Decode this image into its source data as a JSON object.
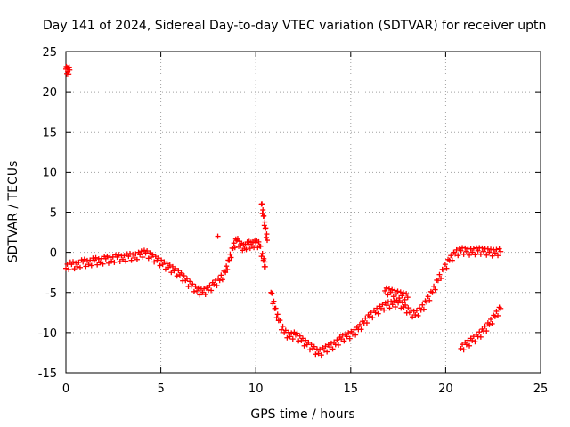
{
  "chart_data": {
    "type": "scatter",
    "title": "Day 141 of 2024, Sidereal Day-to-day VTEC variation (SDTVAR) for receiver uptn",
    "xlabel": "GPS time / hours",
    "ylabel": "SDTVAR / TECUs",
    "xlim": [
      0,
      25
    ],
    "ylim": [
      -15,
      25
    ],
    "x_ticks": [
      "0",
      "5",
      "10",
      "15",
      "20",
      "25"
    ],
    "y_ticks": [
      "25",
      "20",
      "15",
      "10",
      "5",
      "0",
      "-5",
      "-10",
      "-15"
    ],
    "grid": true,
    "marker": "plus",
    "color": "#ff0000",
    "series": [
      {
        "name": "SDTVAR",
        "points": [
          [
            0.0,
            22.8
          ],
          [
            0.1,
            22.5
          ],
          [
            0.2,
            22.7
          ],
          [
            0.0,
            -2.0
          ],
          [
            0.3,
            -1.5
          ],
          [
            0.6,
            -1.8
          ],
          [
            0.9,
            -1.2
          ],
          [
            1.2,
            -1.5
          ],
          [
            1.5,
            -1.0
          ],
          [
            1.8,
            -1.3
          ],
          [
            2.1,
            -0.8
          ],
          [
            2.4,
            -1.1
          ],
          [
            2.7,
            -0.6
          ],
          [
            3.0,
            -0.9
          ],
          [
            3.3,
            -0.5
          ],
          [
            3.6,
            -0.7
          ],
          [
            3.9,
            -0.3
          ],
          [
            4.2,
            -0.1
          ],
          [
            4.5,
            -0.6
          ],
          [
            4.8,
            -1.0
          ],
          [
            5.1,
            -1.5
          ],
          [
            5.4,
            -1.9
          ],
          [
            5.7,
            -2.3
          ],
          [
            6.0,
            -2.8
          ],
          [
            6.3,
            -3.5
          ],
          [
            6.6,
            -4.2
          ],
          [
            6.9,
            -4.8
          ],
          [
            7.2,
            -5.0
          ],
          [
            7.5,
            -4.7
          ],
          [
            7.8,
            -4.0
          ],
          [
            8.1,
            -3.5
          ],
          [
            8.4,
            -2.5
          ],
          [
            8.6,
            -1.0
          ],
          [
            8.8,
            0.5
          ],
          [
            9.0,
            1.5
          ],
          [
            9.2,
            0.8
          ],
          [
            9.4,
            0.5
          ],
          [
            9.6,
            1.0
          ],
          [
            9.8,
            0.8
          ],
          [
            10.0,
            1.2
          ],
          [
            10.2,
            0.8
          ],
          [
            10.4,
            -1.0
          ],
          [
            10.5,
            -1.8
          ],
          [
            10.3,
            6.0
          ],
          [
            10.4,
            4.5
          ],
          [
            10.5,
            3.0
          ],
          [
            10.6,
            1.5
          ],
          [
            8.0,
            2.0
          ],
          [
            10.8,
            -5.0
          ],
          [
            11.0,
            -7.0
          ],
          [
            11.2,
            -8.5
          ],
          [
            11.5,
            -10.0
          ],
          [
            11.8,
            -10.5
          ],
          [
            12.1,
            -10.3
          ],
          [
            12.4,
            -11.0
          ],
          [
            12.7,
            -11.5
          ],
          [
            13.0,
            -12.0
          ],
          [
            13.3,
            -12.6
          ],
          [
            13.6,
            -12.2
          ],
          [
            13.9,
            -11.8
          ],
          [
            14.2,
            -11.5
          ],
          [
            14.5,
            -10.8
          ],
          [
            14.8,
            -10.5
          ],
          [
            15.1,
            -10.2
          ],
          [
            15.4,
            -9.6
          ],
          [
            15.7,
            -8.8
          ],
          [
            16.0,
            -8.0
          ],
          [
            16.3,
            -7.5
          ],
          [
            16.6,
            -7.0
          ],
          [
            16.9,
            -6.6
          ],
          [
            17.2,
            -6.5
          ],
          [
            17.5,
            -6.3
          ],
          [
            17.8,
            -6.8
          ],
          [
            18.1,
            -7.5
          ],
          [
            18.4,
            -7.8
          ],
          [
            18.7,
            -7.2
          ],
          [
            19.0,
            -6.2
          ],
          [
            19.3,
            -5.0
          ],
          [
            19.6,
            -3.5
          ],
          [
            19.9,
            -2.2
          ],
          [
            20.2,
            -1.0
          ],
          [
            20.5,
            -0.2
          ],
          [
            20.8,
            0.2
          ],
          [
            21.1,
            0.1
          ],
          [
            21.4,
            0.0
          ],
          [
            21.7,
            0.2
          ],
          [
            22.0,
            0.1
          ],
          [
            22.3,
            0.0
          ],
          [
            22.6,
            -0.1
          ],
          [
            22.9,
            0.1
          ],
          [
            16.8,
            -4.8
          ],
          [
            17.1,
            -5.0
          ],
          [
            17.4,
            -5.2
          ],
          [
            17.7,
            -5.4
          ],
          [
            18.0,
            -5.6
          ],
          [
            20.8,
            -12.0
          ],
          [
            21.1,
            -11.5
          ],
          [
            21.4,
            -11.0
          ],
          [
            21.7,
            -10.5
          ],
          [
            22.0,
            -9.8
          ],
          [
            22.3,
            -9.0
          ],
          [
            22.6,
            -8.0
          ],
          [
            22.9,
            -7.0
          ]
        ]
      }
    ]
  }
}
